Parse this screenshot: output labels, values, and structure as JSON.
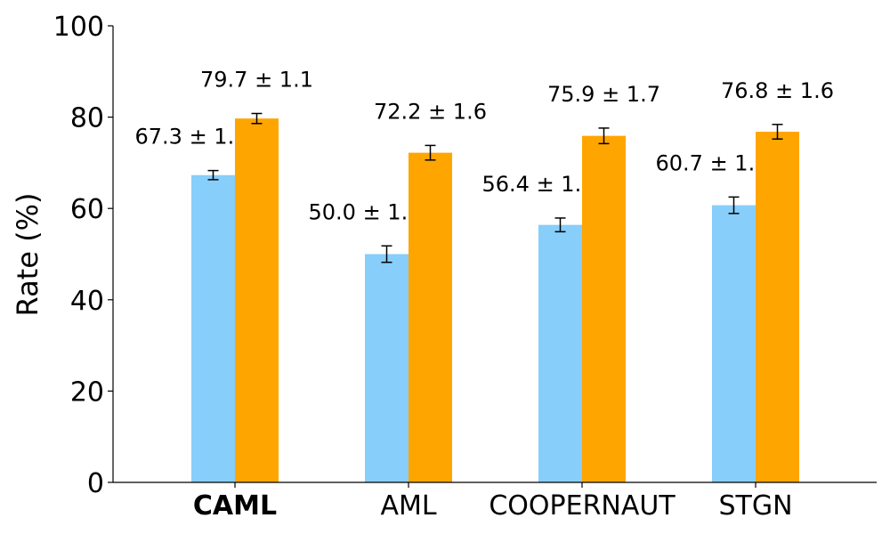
{
  "chart_data": {
    "type": "bar",
    "categories": [
      "CAML",
      "AML",
      "COOPERNAUT",
      "STGN"
    ],
    "bold_category": "CAML",
    "ylabel": "Rate (%)",
    "ylim": [
      0,
      100
    ],
    "yticks": [
      0,
      20,
      40,
      60,
      80,
      100
    ],
    "grid": false,
    "series": [
      {
        "color": "#87CEFA",
        "values": [
          67.3,
          50.0,
          56.4,
          60.7
        ],
        "errors": [
          1.0,
          1.8,
          1.5,
          1.8
        ],
        "labels": [
          "67.3 ± 1.0",
          "50.0 ± 1.8",
          "56.4 ± 1.5",
          "60.7 ± 1.8"
        ]
      },
      {
        "color": "#FFA500",
        "values": [
          79.7,
          72.2,
          75.9,
          76.8
        ],
        "errors": [
          1.1,
          1.6,
          1.7,
          1.6
        ],
        "labels": [
          "79.7 ± 1.1",
          "72.2 ± 1.6",
          "75.9 ± 1.7",
          "76.8 ± 1.6"
        ]
      }
    ]
  }
}
